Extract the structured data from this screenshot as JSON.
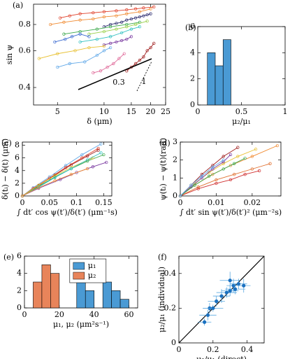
{
  "chart_data": [
    {
      "type": "line",
      "panel_label": "(a)",
      "xlabel": "δ (μm)",
      "ylabel": "sin ψ",
      "xscale": "log",
      "yscale": "log",
      "xlim": [
        3.5,
        25
      ],
      "ylim": [
        0.33,
        1.0
      ],
      "xticks": [
        5,
        10,
        15,
        20,
        25
      ],
      "yticks": [
        0.4,
        0.6,
        0.8
      ],
      "annotations": [
        "0.3",
        "1"
      ],
      "series": [
        {
          "color": "#e0402a",
          "x": [
            5.2,
            6,
            7,
            8.5,
            10,
            12,
            14,
            16,
            18,
            21
          ],
          "y": [
            0.86,
            0.88,
            0.9,
            0.91,
            0.92,
            0.93,
            0.94,
            0.95,
            0.96,
            0.97
          ]
        },
        {
          "color": "#f08a30",
          "x": [
            4.5,
            5.5,
            7,
            8.5,
            10,
            12,
            14,
            17,
            20
          ],
          "y": [
            0.8,
            0.82,
            0.84,
            0.85,
            0.87,
            0.88,
            0.9,
            0.92,
            0.95
          ]
        },
        {
          "color": "#2b2b6e",
          "x": [
            10,
            11,
            12,
            13,
            14,
            15,
            16,
            17,
            18,
            19,
            20
          ],
          "y": [
            0.78,
            0.8,
            0.81,
            0.82,
            0.84,
            0.85,
            0.86,
            0.87,
            0.88,
            0.89,
            0.9
          ]
        },
        {
          "color": "#3aa84a",
          "x": [
            5.5,
            7,
            9,
            11,
            14,
            17
          ],
          "y": [
            0.72,
            0.74,
            0.76,
            0.78,
            0.8,
            0.82
          ]
        },
        {
          "color": "#9ad04a",
          "x": [
            8,
            10,
            12,
            14,
            16,
            19
          ],
          "y": [
            0.72,
            0.74,
            0.76,
            0.78,
            0.8,
            0.83
          ]
        },
        {
          "color": "#30c0c0",
          "x": [
            7,
            9,
            11,
            13,
            15,
            17
          ],
          "y": [
            0.66,
            0.68,
            0.7,
            0.73,
            0.76,
            0.78
          ]
        },
        {
          "color": "#3a6ad0",
          "x": [
            4.8,
            5.6,
            6.2,
            7,
            8
          ],
          "y": [
            0.66,
            0.68,
            0.7,
            0.72,
            0.7
          ]
        },
        {
          "color": "#7a3aa0",
          "x": [
            10,
            11,
            12,
            13,
            14,
            15
          ],
          "y": [
            0.64,
            0.65,
            0.66,
            0.67,
            0.68,
            0.7
          ]
        },
        {
          "color": "#e8c030",
          "x": [
            3.8,
            5,
            6.5,
            8,
            10
          ],
          "y": [
            0.55,
            0.58,
            0.6,
            0.62,
            0.63
          ]
        },
        {
          "color": "#60a8e8",
          "x": [
            5,
            6,
            7.5,
            9,
            10,
            11
          ],
          "y": [
            0.5,
            0.52,
            0.53,
            0.57,
            0.6,
            0.62
          ]
        },
        {
          "color": "#e06a9a",
          "x": [
            8.5,
            9.5,
            10.5,
            11.5,
            12.5,
            13.5
          ],
          "y": [
            0.47,
            0.48,
            0.5,
            0.52,
            0.55,
            0.58
          ]
        },
        {
          "color": "#a02020",
          "x": [
            14,
            15,
            16,
            17,
            18,
            19,
            20,
            21
          ],
          "y": [
            0.48,
            0.5,
            0.52,
            0.54,
            0.56,
            0.6,
            0.62,
            0.65
          ]
        }
      ]
    },
    {
      "type": "histogram",
      "panel_label": "(b)",
      "xlabel": "μ₂/μ₁",
      "xlim": [
        0,
        1
      ],
      "ylim": [
        0,
        6
      ],
      "xticks": [
        0,
        0.5,
        1
      ],
      "yticks": [
        0,
        2,
        4,
        6
      ],
      "series": [
        {
          "color": "#4a9ad4",
          "bins": [
            0.11,
            0.2,
            0.29,
            0.38
          ],
          "counts": [
            4,
            3,
            5
          ]
        }
      ]
    },
    {
      "type": "line",
      "panel_label": "(c)",
      "xlabel": "∫ dt′ cos ψ(t′)/δ(t′) (μm⁻¹s)",
      "ylabel": "δ(tᵢ) − δ(t) (μm)",
      "xlim": [
        0,
        0.165
      ],
      "ylim": [
        0,
        8.5
      ],
      "xticks": [
        0,
        0.05,
        0.1,
        0.15
      ],
      "yticks": [
        0,
        2,
        4,
        6,
        8
      ],
      "series": [
        {
          "color": "#60a8e8",
          "x": [
            0,
            0.02,
            0.05,
            0.08,
            0.11,
            0.145
          ],
          "y": [
            0,
            1.3,
            3,
            4.8,
            6.5,
            8.2
          ]
        },
        {
          "color": "#e0402a",
          "x": [
            0,
            0.02,
            0.05,
            0.08,
            0.11,
            0.14
          ],
          "y": [
            0,
            1.2,
            2.8,
            4.5,
            6,
            7.5
          ]
        },
        {
          "color": "#a02020",
          "x": [
            0,
            0.03,
            0.06,
            0.09,
            0.12,
            0.14
          ],
          "y": [
            0,
            1.6,
            3.3,
            4.9,
            6.3,
            7.2
          ]
        },
        {
          "color": "#3aa84a",
          "x": [
            0,
            0.03,
            0.06,
            0.09,
            0.12,
            0.15
          ],
          "y": [
            0,
            1.5,
            3,
            4.3,
            5.5,
            6.5
          ]
        },
        {
          "color": "#7a3aa0",
          "x": [
            0,
            0.03,
            0.07,
            0.1,
            0.13,
            0.155
          ],
          "y": [
            0,
            1.2,
            2.6,
            3.7,
            4.6,
            5.3
          ]
        },
        {
          "color": "#e8c030",
          "x": [
            0,
            0.03,
            0.06,
            0.09,
            0.13
          ],
          "y": [
            0,
            1.7,
            3.2,
            4.5,
            6
          ]
        },
        {
          "color": "#30c0c0",
          "x": [
            0,
            0.03,
            0.06,
            0.09,
            0.12,
            0.145
          ],
          "y": [
            0,
            1.4,
            2.9,
            4.3,
            5.7,
            6.8
          ]
        },
        {
          "color": "#f08a30",
          "x": [
            0,
            0.03,
            0.06,
            0.09,
            0.12
          ],
          "y": [
            0,
            1.3,
            2.4,
            3.4,
            4.3
          ]
        }
      ]
    },
    {
      "type": "line",
      "panel_label": "(d)",
      "xlabel": "∫ dt′ sin ψ(t′)/δ(t′)² (μm⁻²s)",
      "ylabel": "ψ(tᵢ) − ψ(t)(rad)",
      "xlim": [
        0,
        0.028
      ],
      "ylim": [
        0,
        3
      ],
      "xticks": [
        0,
        0.01,
        0.02
      ],
      "yticks": [
        0,
        1,
        2,
        3
      ],
      "series": [
        {
          "color": "#f08a30",
          "x": [
            0,
            0.004,
            0.009,
            0.014,
            0.02,
            0.027
          ],
          "y": [
            0,
            0.6,
            1.2,
            1.7,
            2.2,
            2.8
          ]
        },
        {
          "color": "#e8c030",
          "x": [
            0,
            0.004,
            0.008,
            0.012,
            0.016,
            0.021
          ],
          "y": [
            0,
            0.7,
            1.3,
            1.8,
            2.2,
            2.6
          ]
        },
        {
          "color": "#a02020",
          "x": [
            0,
            0.003,
            0.006,
            0.009,
            0.012,
            0.016
          ],
          "y": [
            0,
            0.6,
            1.2,
            1.7,
            2.2,
            2.7
          ]
        },
        {
          "color": "#7a3aa0",
          "x": [
            0,
            0.003,
            0.006,
            0.009,
            0.012,
            0.014
          ],
          "y": [
            0,
            0.5,
            1.0,
            1.5,
            1.9,
            2.3
          ]
        },
        {
          "color": "#e07030",
          "x": [
            0,
            0.005,
            0.01,
            0.015,
            0.02,
            0.025
          ],
          "y": [
            0,
            0.5,
            0.9,
            1.2,
            1.5,
            1.8
          ]
        },
        {
          "color": "#d03030",
          "x": [
            0,
            0.005,
            0.01,
            0.014,
            0.018,
            0.022
          ],
          "y": [
            0,
            0.4,
            0.7,
            0.9,
            1.2,
            1.4
          ]
        },
        {
          "color": "#3aa84a",
          "x": [
            0,
            0.004,
            0.008,
            0.012,
            0.015,
            0.018
          ],
          "y": [
            0,
            0.6,
            1.1,
            1.5,
            1.8,
            2.1
          ]
        },
        {
          "color": "#60a8e8",
          "x": [
            0,
            0.003,
            0.006,
            0.009,
            0.012
          ],
          "y": [
            0,
            0.6,
            1.1,
            1.6,
            2.0
          ]
        }
      ]
    },
    {
      "type": "histogram",
      "panel_label": "(e)",
      "xlabel": "μ₁, μ₂ (μm²s⁻¹)",
      "xlim": [
        0,
        65
      ],
      "ylim": [
        0,
        6
      ],
      "xticks": [
        0,
        20,
        40,
        60
      ],
      "yticks": [
        0,
        2,
        4,
        6
      ],
      "legend": "upper center",
      "series": [
        {
          "name": "μ₁",
          "color": "#4a9ad4",
          "bins": [
            30,
            35,
            40,
            45,
            50,
            55,
            60
          ],
          "counts": [
            3,
            2,
            0,
            3,
            2,
            1
          ]
        },
        {
          "name": "μ₂",
          "color": "#e8845a",
          "bins": [
            5,
            10,
            15,
            20
          ],
          "counts": [
            3,
            5,
            4
          ]
        }
      ]
    },
    {
      "type": "scatter",
      "panel_label": "(f)",
      "xlabel": "μ₂/μ₁ (direct)",
      "ylabel": "μ₂/μ₁ (individual)",
      "xlim": [
        0,
        0.5
      ],
      "ylim": [
        0,
        0.5
      ],
      "xticks": [
        0,
        0.2,
        0.4
      ],
      "yticks": [
        0,
        0.2,
        0.4
      ],
      "color": "#1a70c0",
      "x": [
        0.15,
        0.17,
        0.18,
        0.2,
        0.22,
        0.25,
        0.28,
        0.3,
        0.32,
        0.33,
        0.35,
        0.38,
        0.3
      ],
      "y": [
        0.12,
        0.16,
        0.2,
        0.2,
        0.24,
        0.27,
        0.29,
        0.3,
        0.33,
        0.31,
        0.34,
        0.33,
        0.36
      ],
      "xerr": [
        0.04,
        0.05,
        0.04,
        0.06,
        0.05,
        0.05,
        0.06,
        0.05,
        0.04,
        0.06,
        0.05,
        0.04,
        0.06
      ],
      "yerr": [
        0.02,
        0.03,
        0.03,
        0.02,
        0.03,
        0.04,
        0.03,
        0.03,
        0.04,
        0.03,
        0.03,
        0.04,
        0.05
      ]
    }
  ]
}
